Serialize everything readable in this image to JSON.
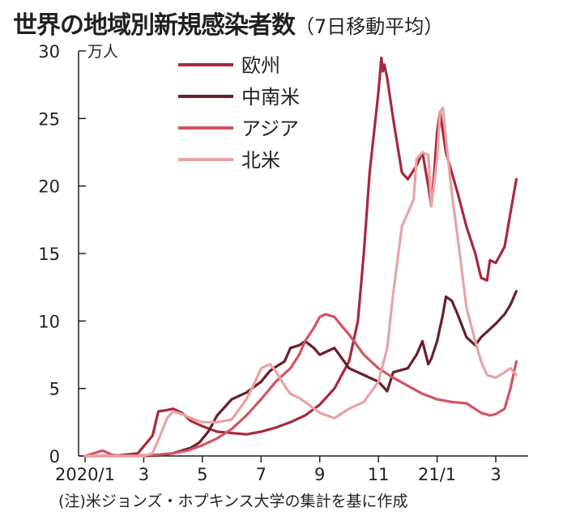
{
  "title": "世界の地域別新規感染者数",
  "subtitle": "（7日移動平均）",
  "note": "(注)米ジョンズ・ホプキンス大学の集計を基に作成",
  "chart_data": {
    "type": "line",
    "title": "世界の地域別新規感染者数（7日移動平均）",
    "ylabel": "万人",
    "ylim": [
      0,
      30
    ],
    "yticks": [
      "0",
      "5",
      "10",
      "15",
      "20",
      "25",
      "30"
    ],
    "xlim": [
      0,
      14.8
    ],
    "xticks": [
      {
        "label": "2020/1",
        "x": 0
      },
      {
        "label": "3",
        "x": 2
      },
      {
        "label": "5",
        "x": 4
      },
      {
        "label": "7",
        "x": 6
      },
      {
        "label": "9",
        "x": 8
      },
      {
        "label": "11",
        "x": 10
      },
      {
        "label": "21/1",
        "x": 12
      },
      {
        "label": "3",
        "x": 14
      }
    ],
    "series": [
      {
        "name": "欧州",
        "color": "#a8283f",
        "x": [
          0,
          1,
          1.8,
          2.3,
          2.5,
          2.8,
          3.0,
          3.3,
          3.6,
          4.0,
          4.5,
          5.0,
          5.5,
          6.0,
          6.5,
          7.0,
          7.5,
          8.0,
          8.5,
          9.0,
          9.3,
          9.5,
          9.7,
          10.0,
          10.1,
          10.15,
          10.2,
          10.3,
          10.5,
          10.8,
          11.0,
          11.3,
          11.5,
          11.7,
          11.8,
          11.9,
          12.0,
          12.1,
          12.2,
          12.3,
          12.5,
          12.7,
          13.0,
          13.3,
          13.5,
          13.7,
          13.8,
          14.0,
          14.3,
          14.5,
          14.7
        ],
        "values": [
          0,
          0,
          0.2,
          1.5,
          3.3,
          3.4,
          3.5,
          3.2,
          2.6,
          2.2,
          1.8,
          1.7,
          1.6,
          1.8,
          2.1,
          2.5,
          3.0,
          3.8,
          5.0,
          7.0,
          10.0,
          15.0,
          21.0,
          27.0,
          29.5,
          28.5,
          29.0,
          28.0,
          25.0,
          21.0,
          20.5,
          21.5,
          22.5,
          20.0,
          18.5,
          21.0,
          24.0,
          25.5,
          24.0,
          22.5,
          21.0,
          19.5,
          17.0,
          15.0,
          13.2,
          13.0,
          14.5,
          14.3,
          15.5,
          18.0,
          20.5
        ]
      },
      {
        "name": "中南米",
        "color": "#6b1f28",
        "x": [
          0,
          1,
          1.5,
          2.0,
          2.5,
          3.0,
          3.3,
          3.6,
          3.9,
          4.2,
          4.5,
          5.0,
          5.5,
          6.0,
          6.3,
          6.5,
          6.8,
          7.0,
          7.3,
          7.5,
          7.8,
          8.0,
          8.3,
          8.5,
          9.0,
          9.5,
          10.0,
          10.3,
          10.5,
          11.0,
          11.3,
          11.5,
          11.7,
          11.8,
          12.0,
          12.2,
          12.3,
          12.5,
          12.7,
          13.0,
          13.3,
          13.5,
          13.7,
          14.0,
          14.3,
          14.5,
          14.7
        ],
        "values": [
          0,
          0,
          0,
          0,
          0.05,
          0.2,
          0.4,
          0.6,
          1.0,
          1.8,
          3.0,
          4.2,
          4.7,
          5.5,
          6.3,
          6.6,
          7.0,
          8.0,
          8.2,
          8.5,
          8.0,
          7.5,
          7.8,
          8.0,
          6.5,
          6.0,
          5.5,
          4.8,
          6.2,
          6.5,
          7.5,
          8.5,
          6.8,
          7.2,
          8.5,
          10.5,
          11.8,
          11.5,
          10.5,
          8.8,
          8.2,
          8.8,
          9.2,
          9.8,
          10.5,
          11.2,
          12.2
        ]
      },
      {
        "name": "アジア",
        "color": "#d25462",
        "x": [
          0,
          0.3,
          0.6,
          0.9,
          1.2,
          1.5,
          2.0,
          2.5,
          3.0,
          3.5,
          4.0,
          4.5,
          5.0,
          5.5,
          6.0,
          6.5,
          7.0,
          7.3,
          7.5,
          7.8,
          8.0,
          8.2,
          8.5,
          8.8,
          9.0,
          9.5,
          10.0,
          10.5,
          11.0,
          11.5,
          12.0,
          12.5,
          13.0,
          13.5,
          13.8,
          14.0,
          14.3,
          14.5,
          14.7
        ],
        "values": [
          0,
          0.2,
          0.4,
          0.1,
          0,
          0,
          0.05,
          0.1,
          0.2,
          0.4,
          0.8,
          1.3,
          2.0,
          3.0,
          4.2,
          5.5,
          6.5,
          7.5,
          8.5,
          9.5,
          10.3,
          10.5,
          10.3,
          9.5,
          9.0,
          7.5,
          6.5,
          5.8,
          5.2,
          4.6,
          4.2,
          4.0,
          3.9,
          3.2,
          3.0,
          3.1,
          3.5,
          5.0,
          7.0
        ]
      },
      {
        "name": "北米",
        "color": "#e8a3a4",
        "x": [
          0,
          1,
          1.5,
          1.8,
          2.0,
          2.3,
          2.5,
          2.8,
          3.0,
          3.3,
          3.6,
          4.0,
          4.5,
          5.0,
          5.5,
          5.8,
          6.0,
          6.3,
          6.5,
          6.8,
          7.0,
          7.3,
          7.5,
          8.0,
          8.5,
          9.0,
          9.5,
          10.0,
          10.3,
          10.5,
          10.8,
          11.0,
          11.2,
          11.3,
          11.5,
          11.7,
          11.8,
          12.0,
          12.1,
          12.2,
          12.3,
          12.5,
          12.8,
          13.0,
          13.3,
          13.5,
          13.7,
          14.0,
          14.3,
          14.5,
          14.7
        ],
        "values": [
          0,
          0,
          0,
          0,
          0,
          0.2,
          1.2,
          2.8,
          3.3,
          3.1,
          2.8,
          2.5,
          2.5,
          2.7,
          4.2,
          5.5,
          6.5,
          6.8,
          6.3,
          5.2,
          4.6,
          4.3,
          4.0,
          3.2,
          2.8,
          3.5,
          4.0,
          5.5,
          8.0,
          12.0,
          17.0,
          18.0,
          19.0,
          22.0,
          22.5,
          22.3,
          18.5,
          22.0,
          25.5,
          25.8,
          23.5,
          19.5,
          14.5,
          11.0,
          8.5,
          7.0,
          6.0,
          5.8,
          6.2,
          6.5,
          6.0
        ]
      }
    ]
  }
}
